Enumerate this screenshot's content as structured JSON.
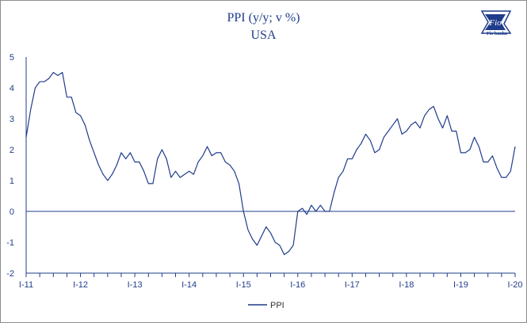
{
  "brand": {
    "logo_text": "Fio",
    "logo_caption": "Fio banka"
  },
  "chart_data": {
    "type": "line",
    "title": "PPI (y/y; v %)",
    "subtitle": "USA",
    "xlabel": "",
    "ylabel": "",
    "ylim": [
      -2,
      5
    ],
    "y_ticks": [
      "-2",
      "-1",
      "0",
      "1",
      "2",
      "3",
      "4",
      "5"
    ],
    "x_ticks": [
      "I-11",
      "I-12",
      "I-13",
      "I-14",
      "I-15",
      "I-16",
      "I-17",
      "I-18",
      "I-19",
      "I-20"
    ],
    "legend": "bottom",
    "grid": false,
    "zero_line": true,
    "colors": {
      "line": "#1f3c8c",
      "text": "#1f3c8c"
    },
    "series": [
      {
        "name": "PPI",
        "values": [
          2.4,
          3.3,
          4.0,
          4.2,
          4.2,
          4.3,
          4.5,
          4.4,
          4.5,
          3.7,
          3.7,
          3.2,
          3.1,
          2.8,
          2.3,
          1.9,
          1.5,
          1.2,
          1.0,
          1.2,
          1.5,
          1.9,
          1.7,
          1.9,
          1.6,
          1.6,
          1.3,
          0.9,
          0.9,
          1.7,
          2.0,
          1.7,
          1.1,
          1.3,
          1.1,
          1.2,
          1.3,
          1.2,
          1.6,
          1.8,
          2.1,
          1.8,
          1.9,
          1.9,
          1.6,
          1.5,
          1.3,
          0.9,
          0.0,
          -0.6,
          -0.9,
          -1.1,
          -0.8,
          -0.5,
          -0.7,
          -1.0,
          -1.1,
          -1.4,
          -1.3,
          -1.1,
          0.0,
          0.1,
          -0.1,
          0.2,
          0.0,
          0.2,
          0.0,
          0.0,
          0.6,
          1.1,
          1.3,
          1.7,
          1.7,
          2.0,
          2.2,
          2.5,
          2.3,
          1.9,
          2.0,
          2.4,
          2.6,
          2.8,
          3.0,
          2.5,
          2.6,
          2.8,
          2.9,
          2.7,
          3.1,
          3.3,
          3.4,
          3.0,
          2.7,
          3.1,
          2.6,
          2.6,
          1.9,
          1.9,
          2.0,
          2.4,
          2.1,
          1.6,
          1.6,
          1.8,
          1.4,
          1.1,
          1.1,
          1.3,
          2.1
        ]
      }
    ]
  }
}
